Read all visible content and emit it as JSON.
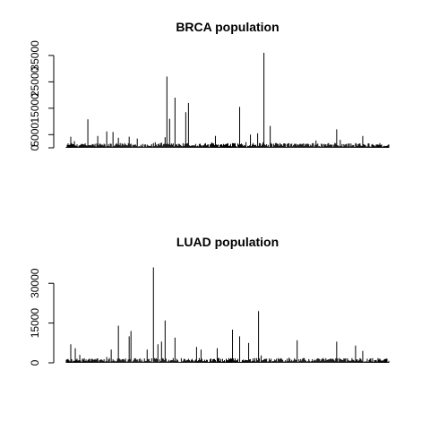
{
  "chart_data": [
    {
      "type": "bar",
      "title": "BRCA population",
      "xlabel": "",
      "ylabel": "",
      "ylim": [
        0,
        37000
      ],
      "yticks": [
        0,
        5000,
        15000,
        25000,
        35000
      ],
      "x_count": 360,
      "baseline_range": [
        300,
        1800
      ],
      "peaks": [
        {
          "index": 5,
          "value": 4200
        },
        {
          "index": 24,
          "value": 10800
        },
        {
          "index": 35,
          "value": 4500
        },
        {
          "index": 45,
          "value": 6200
        },
        {
          "index": 52,
          "value": 6000
        },
        {
          "index": 58,
          "value": 3800
        },
        {
          "index": 70,
          "value": 4200
        },
        {
          "index": 79,
          "value": 3500
        },
        {
          "index": 110,
          "value": 4000
        },
        {
          "index": 112,
          "value": 27000
        },
        {
          "index": 115,
          "value": 11000
        },
        {
          "index": 121,
          "value": 19000
        },
        {
          "index": 133,
          "value": 13500
        },
        {
          "index": 136,
          "value": 17000
        },
        {
          "index": 166,
          "value": 4500
        },
        {
          "index": 193,
          "value": 15500
        },
        {
          "index": 205,
          "value": 5000
        },
        {
          "index": 213,
          "value": 5500
        },
        {
          "index": 220,
          "value": 36000
        },
        {
          "index": 227,
          "value": 8300
        },
        {
          "index": 301,
          "value": 7000
        },
        {
          "index": 305,
          "value": 3000
        },
        {
          "index": 330,
          "value": 4500
        }
      ]
    },
    {
      "type": "bar",
      "title": "LUAD population",
      "xlabel": "",
      "ylabel": "",
      "ylim": [
        0,
        36500
      ],
      "yticks": [
        0,
        15000,
        30000
      ],
      "x_count": 360,
      "baseline_range": [
        300,
        1800
      ],
      "peaks": [
        {
          "index": 5,
          "value": 7000
        },
        {
          "index": 10,
          "value": 5500
        },
        {
          "index": 15,
          "value": 3000
        },
        {
          "index": 50,
          "value": 5000
        },
        {
          "index": 58,
          "value": 14000
        },
        {
          "index": 70,
          "value": 10000
        },
        {
          "index": 72,
          "value": 12000
        },
        {
          "index": 90,
          "value": 5000
        },
        {
          "index": 97,
          "value": 36000
        },
        {
          "index": 102,
          "value": 7000
        },
        {
          "index": 106,
          "value": 8000
        },
        {
          "index": 110,
          "value": 16000
        },
        {
          "index": 121,
          "value": 9500
        },
        {
          "index": 145,
          "value": 6000
        },
        {
          "index": 150,
          "value": 5000
        },
        {
          "index": 168,
          "value": 5500
        },
        {
          "index": 185,
          "value": 12500
        },
        {
          "index": 193,
          "value": 10000
        },
        {
          "index": 203,
          "value": 7500
        },
        {
          "index": 214,
          "value": 19500
        },
        {
          "index": 257,
          "value": 8500
        },
        {
          "index": 301,
          "value": 8000
        },
        {
          "index": 322,
          "value": 6500
        },
        {
          "index": 330,
          "value": 4500
        }
      ]
    }
  ]
}
